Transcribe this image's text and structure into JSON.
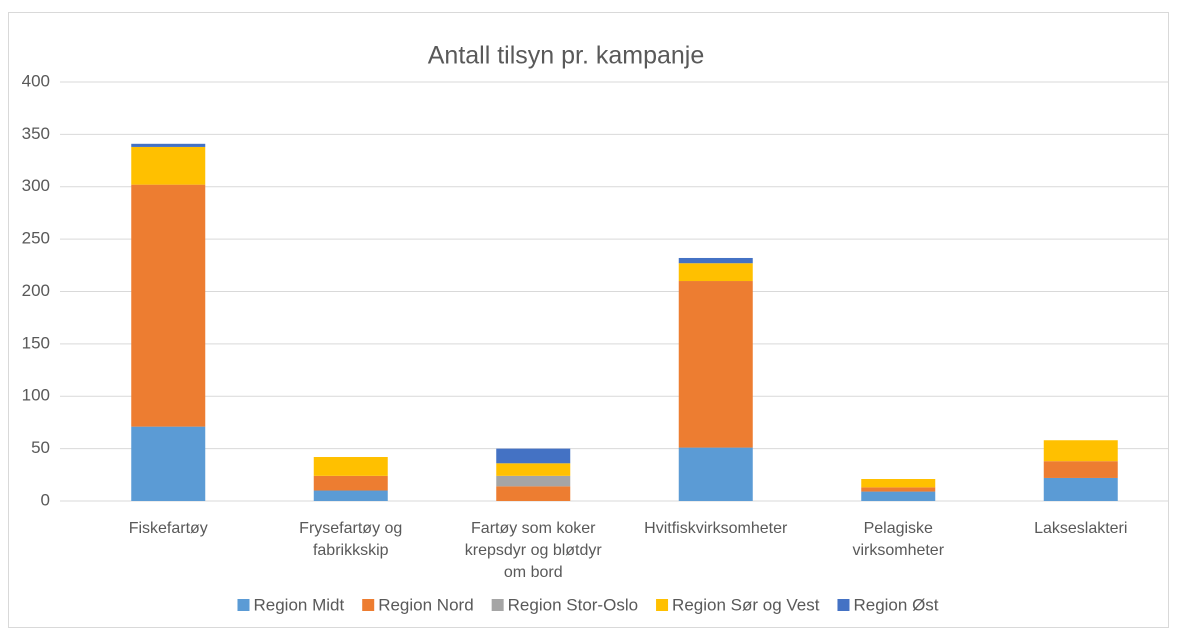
{
  "chart_data": {
    "type": "stacked_bar",
    "title": "Antall tilsyn pr. kampanje",
    "categories": [
      "Fiskefartøy",
      "Frysefartøy og fabrikkskip",
      "Fartøy som koker krepsdyr og bløtdyr om bord",
      "Hvitfiskvirksomheter",
      "Pelagiske virksomheter",
      "Lakseslakteri"
    ],
    "series": [
      {
        "name": "Region Midt",
        "color": "#5b9bd5",
        "values": [
          71,
          10,
          0,
          51,
          9,
          22
        ]
      },
      {
        "name": "Region Nord",
        "color": "#ed7d31",
        "values": [
          231,
          14,
          14,
          159,
          4,
          16
        ]
      },
      {
        "name": "Region Stor-Oslo",
        "color": "#a5a5a5",
        "values": [
          0,
          0,
          10,
          0,
          0,
          0
        ]
      },
      {
        "name": "Region Sør og Vest",
        "color": "#ffc000",
        "values": [
          36,
          18,
          12,
          17,
          8,
          20
        ]
      },
      {
        "name": "Region Øst",
        "color": "#4472c4",
        "values": [
          3,
          0,
          14,
          5,
          0,
          0
        ]
      }
    ],
    "ylim": [
      0,
      400
    ],
    "yticks": [
      0,
      50,
      100,
      150,
      200,
      250,
      300,
      350,
      400
    ],
    "grid": true,
    "legend": "bottom"
  }
}
